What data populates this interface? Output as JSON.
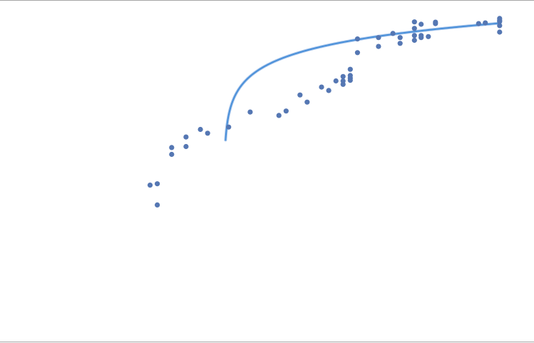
{
  "colors": {
    "background": "#ffffff",
    "frame": "#a6a6a6",
    "points": "#5577b3",
    "curve": "#4a90d9"
  },
  "chart_data": {
    "type": "scatter",
    "title": "",
    "xlabel": "",
    "ylabel": "",
    "grid": false,
    "legend": "none",
    "xlim": [
      0,
      100
    ],
    "ylim": [
      0,
      100
    ],
    "series": [
      {
        "kind": "points",
        "x": [
          29.1,
          30.5,
          30.5,
          33.3,
          33.3,
          36.1,
          36.1,
          38.9,
          40.3,
          44.4,
          48.6,
          54.2,
          55.6,
          58.3,
          59.7,
          62.5,
          63.9,
          65.3,
          66.7,
          66.7,
          66.7,
          68.1,
          68.1,
          68.1,
          68.1,
          69.5,
          69.5,
          73.6,
          73.6,
          76.4,
          77.8,
          77.8,
          80.6,
          80.6,
          80.6,
          80.6,
          81.9,
          81.9,
          81.9,
          83.3,
          84.7,
          84.7,
          93.1,
          94.4,
          97.2,
          97.2,
          97.2,
          97.2,
          97.2
        ],
        "y": [
          45.8,
          46.2,
          40.0,
          56.8,
          54.8,
          59.9,
          57.1,
          62.1,
          61.0,
          62.8,
          67.2,
          66.2,
          67.5,
          72.2,
          70.1,
          74.5,
          73.5,
          76.3,
          77.6,
          76.3,
          75.3,
          79.7,
          77.9,
          77.1,
          76.5,
          84.6,
          88.6,
          89.0,
          86.4,
          90.2,
          89.0,
          87.3,
          88.2,
          89.6,
          91.7,
          93.6,
          89.0,
          89.6,
          92.9,
          89.3,
          93.1,
          93.5,
          93.1,
          93.3,
          92.5,
          93.7,
          94.0,
          94.6,
          90.6
        ]
      },
      {
        "kind": "trendline",
        "model": "logarithmic",
        "x_start": 43.8,
        "x_end": 97.2,
        "y_start": 59.0,
        "y_end": 93.2
      }
    ]
  }
}
